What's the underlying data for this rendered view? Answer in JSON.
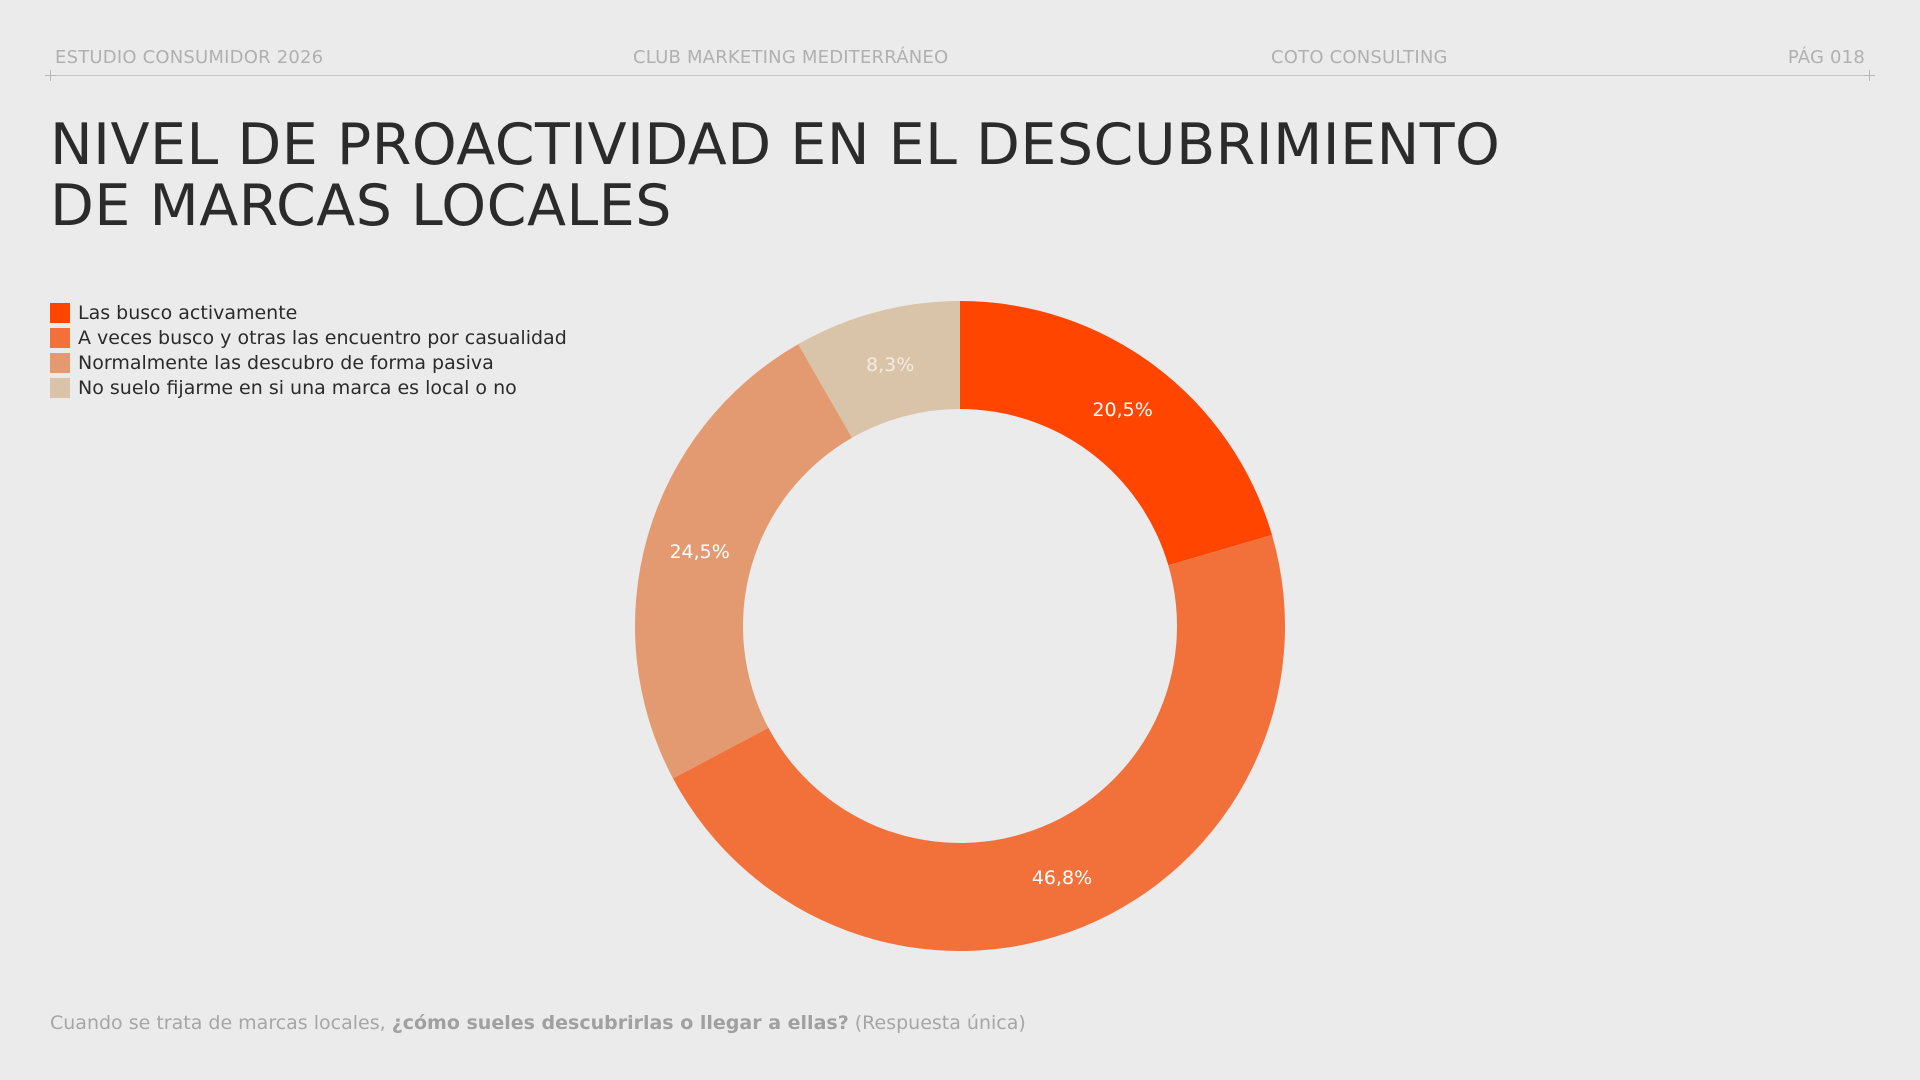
{
  "header": {
    "left": "ESTUDIO CONSUMIDOR 2026",
    "center": "CLUB MARKETING MEDITERRÁNEO",
    "right_center": "COTO CONSULTING",
    "page": "PÁG 018"
  },
  "title_line1": "NIVEL DE PROACTIVIDAD EN EL DESCUBRIMIENTO",
  "title_line2": "DE MARCAS LOCALES",
  "chart_data": {
    "type": "pie",
    "donut": true,
    "title": "NIVEL DE PROACTIVIDAD EN EL DESCUBRIMIENTO DE MARCAS LOCALES",
    "legend_position": "top-left",
    "categories": [
      "Las busco activamente",
      "A veces busco y otras las encuentro por casualidad",
      "Normalmente las descubro de forma pasiva",
      "No suelo fijarme en si una marca es local o no"
    ],
    "values": [
      20.5,
      46.8,
      24.5,
      8.3
    ],
    "labels": [
      "20,5%",
      "46,8%",
      "24,5%",
      "8,3%"
    ],
    "colors": [
      "#FF4500",
      "#F2713B",
      "#E39A71",
      "#D9C4A9"
    ],
    "label_colors": [
      "#ffffff",
      "#ffffff",
      "#ffffff",
      "#f3ece2"
    ]
  },
  "footer": {
    "pre": "Cuando se trata de marcas locales, ",
    "question": "¿cómo sueles descubrirlas o llegar a ellas?",
    "post": " (Respuesta única)"
  }
}
